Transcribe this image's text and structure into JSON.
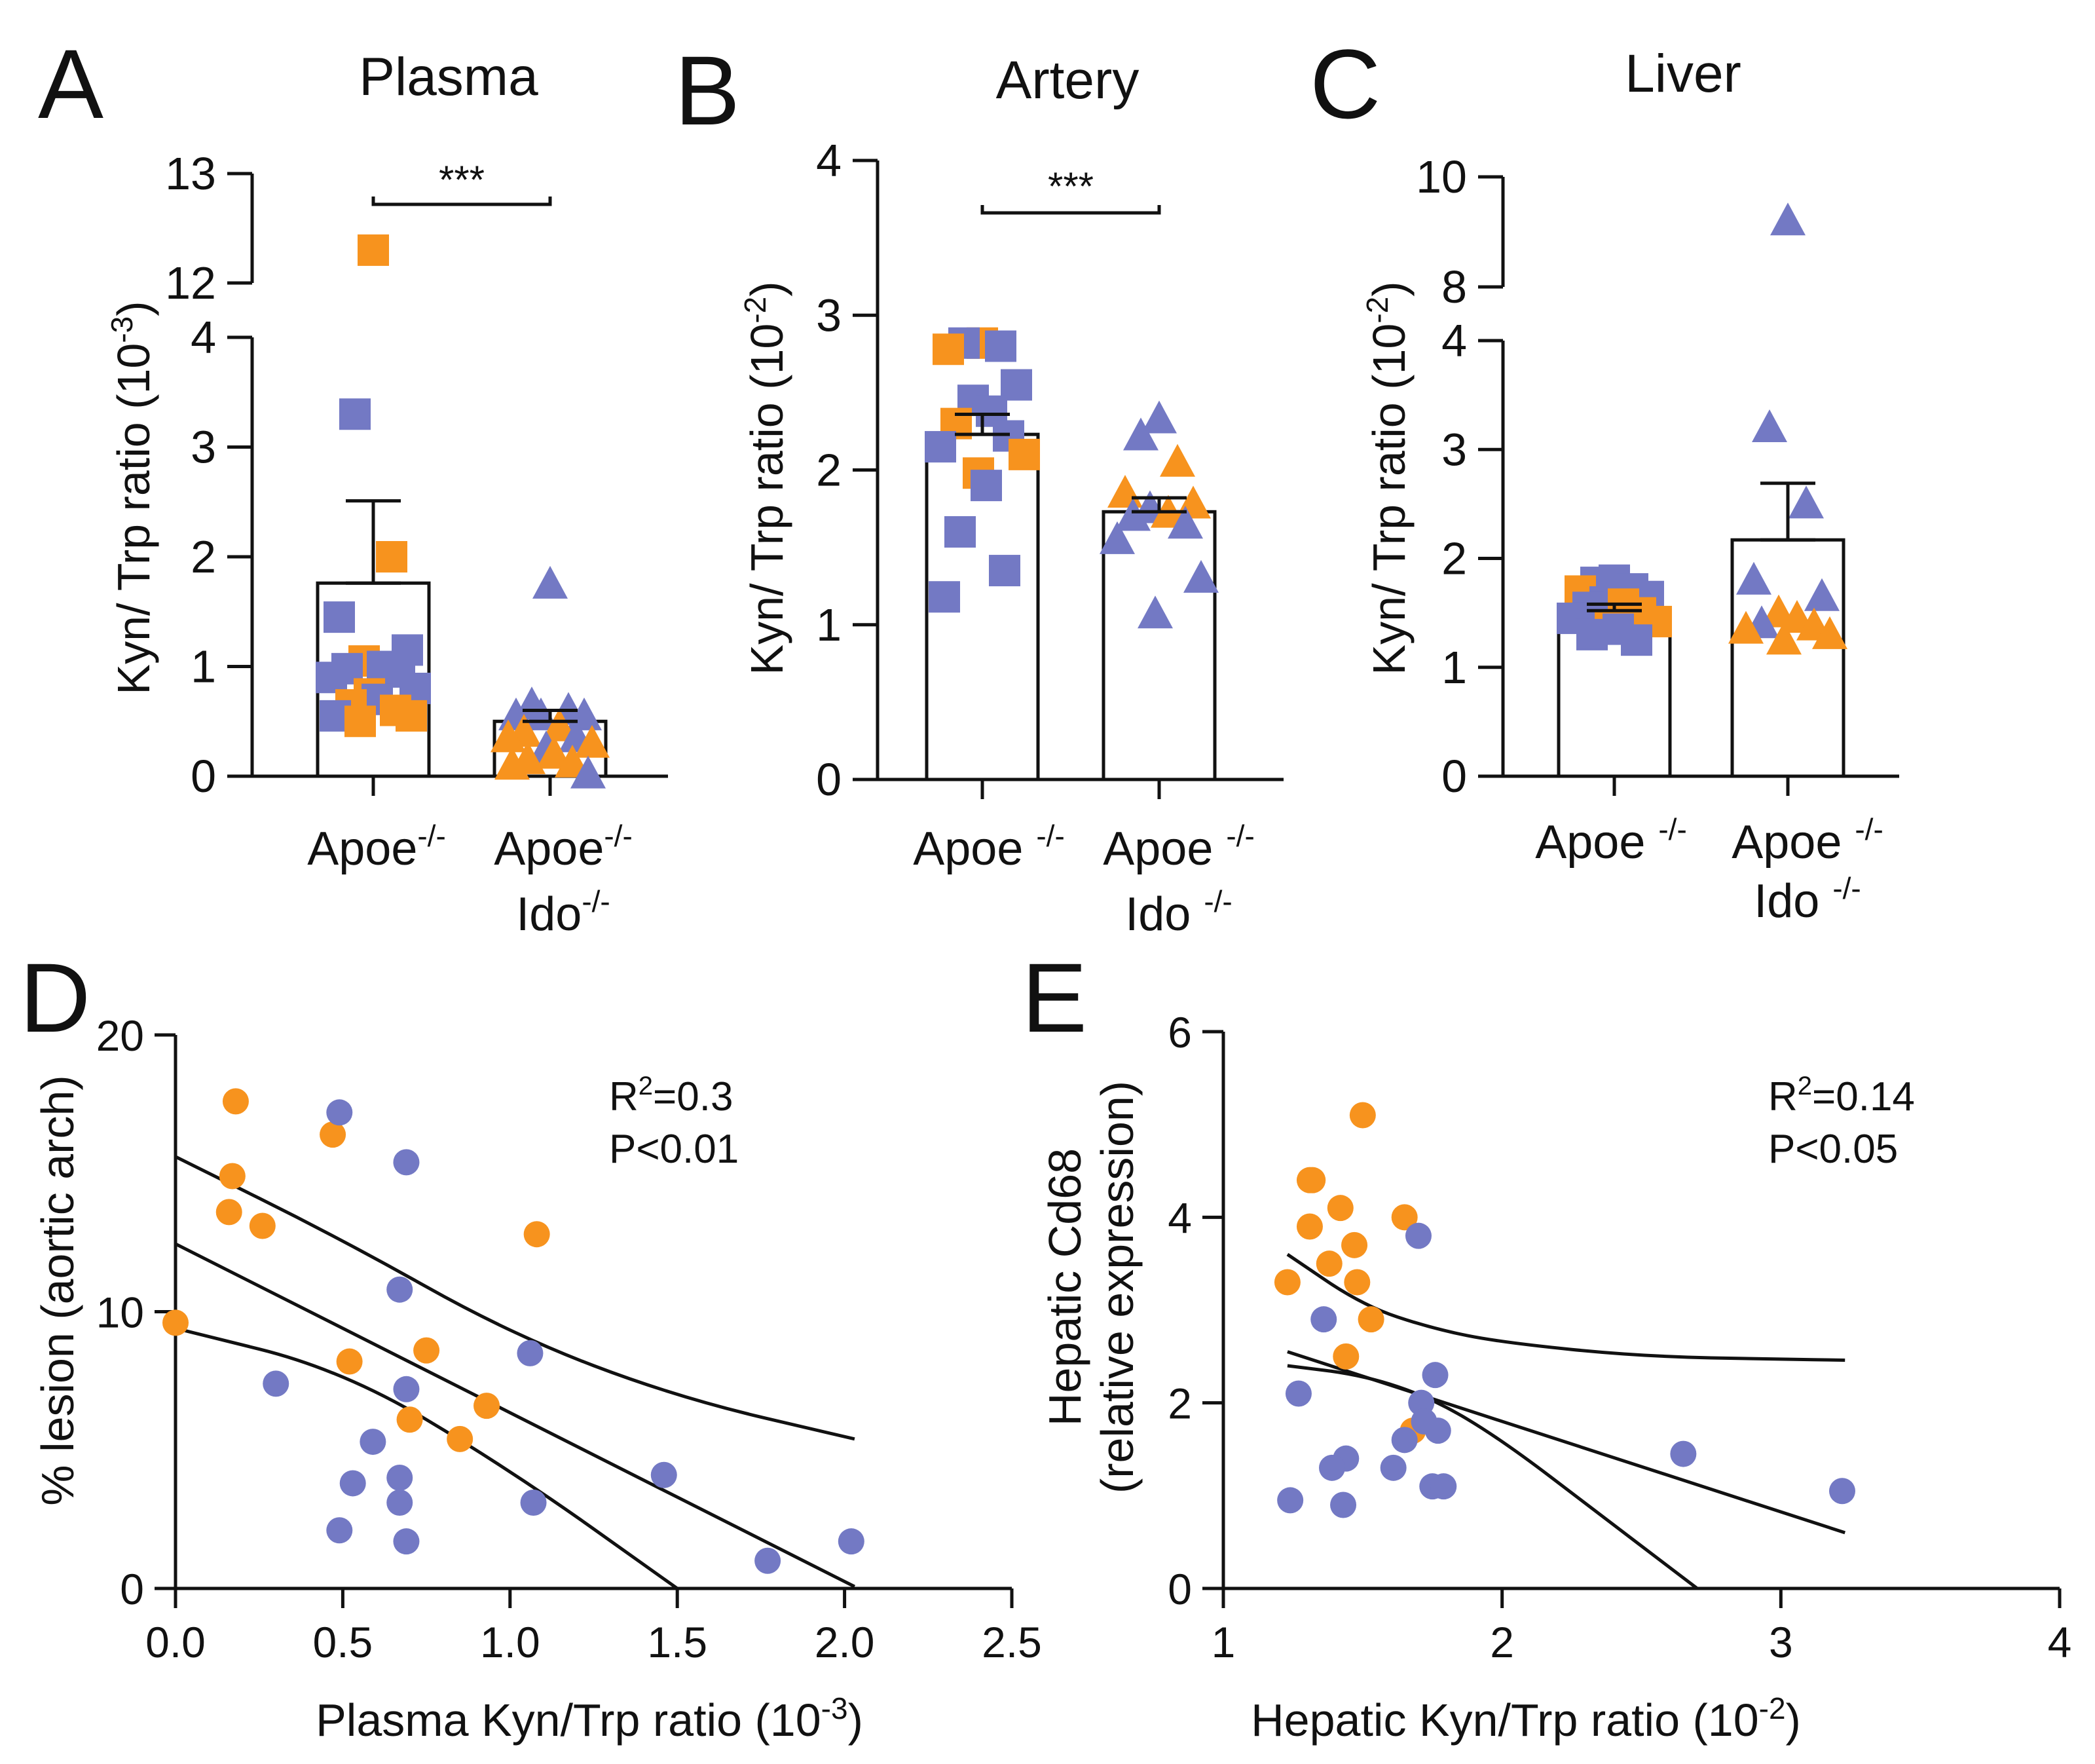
{
  "colors": {
    "orange": "#F7931E",
    "blue": "#7379C4",
    "ink": "#111111"
  },
  "chart_data": [
    {
      "id": "A",
      "panel_label": "A",
      "type": "bar",
      "title": "Plasma",
      "ylabel": "Kyn/ Trp ratio (10",
      "ylabel_exp": "-3",
      "ylabel_close": ")",
      "categories": [
        {
          "line1": "Apoe",
          "line1_sup": "-/-",
          "line2": "",
          "line2_sup": ""
        },
        {
          "line1": "Apoe",
          "line1_sup": "-/-",
          "line2": "Ido",
          "line2_sup": "-/-"
        }
      ],
      "axis_break": {
        "lower": [
          0,
          4
        ],
        "upper": [
          12,
          13
        ]
      },
      "yticks": [
        0,
        1,
        2,
        3,
        4,
        12,
        13
      ],
      "yticklabels": [
        "0",
        "1",
        "2",
        "3",
        "4",
        "12",
        "13"
      ],
      "means": [
        1.76,
        0.5
      ],
      "sem": [
        0.75,
        0.1
      ],
      "significance": {
        "label": "***",
        "pair": [
          0,
          1
        ],
        "y": 12.3
      },
      "marker": [
        "square",
        "triangle"
      ],
      "points": [
        [
          {
            "v": 12.3,
            "c": "orange"
          },
          {
            "v": 3.3,
            "c": "blue"
          },
          {
            "v": 2.0,
            "c": "orange"
          },
          {
            "v": 1.45,
            "c": "blue"
          },
          {
            "v": 1.15,
            "c": "blue"
          },
          {
            "v": 1.05,
            "c": "orange"
          },
          {
            "v": 1.0,
            "c": "blue"
          },
          {
            "v": 0.98,
            "c": "blue"
          },
          {
            "v": 0.95,
            "c": "blue"
          },
          {
            "v": 0.9,
            "c": "blue"
          },
          {
            "v": 0.8,
            "c": "blue"
          },
          {
            "v": 0.75,
            "c": "orange"
          },
          {
            "v": 0.7,
            "c": "blue"
          },
          {
            "v": 0.65,
            "c": "orange"
          },
          {
            "v": 0.6,
            "c": "orange"
          },
          {
            "v": 0.55,
            "c": "blue"
          },
          {
            "v": 0.55,
            "c": "orange"
          },
          {
            "v": 0.5,
            "c": "orange"
          }
        ],
        [
          {
            "v": 1.75,
            "c": "blue"
          },
          {
            "v": 0.65,
            "c": "blue"
          },
          {
            "v": 0.6,
            "c": "blue"
          },
          {
            "v": 0.55,
            "c": "blue"
          },
          {
            "v": 0.55,
            "c": "blue"
          },
          {
            "v": 0.55,
            "c": "blue"
          },
          {
            "v": 0.45,
            "c": "orange"
          },
          {
            "v": 0.4,
            "c": "orange"
          },
          {
            "v": 0.35,
            "c": "blue"
          },
          {
            "v": 0.35,
            "c": "orange"
          },
          {
            "v": 0.3,
            "c": "orange"
          },
          {
            "v": 0.25,
            "c": "blue"
          },
          {
            "v": 0.2,
            "c": "orange"
          },
          {
            "v": 0.15,
            "c": "orange"
          },
          {
            "v": 0.12,
            "c": "orange"
          },
          {
            "v": 0.1,
            "c": "orange"
          },
          {
            "v": 0.02,
            "c": "blue"
          }
        ]
      ]
    },
    {
      "id": "B",
      "panel_label": "B",
      "type": "bar",
      "title": "Artery",
      "ylabel": "Kyn/ Trp ratio (10",
      "ylabel_exp": "-2",
      "ylabel_close": ")",
      "categories": [
        {
          "line1": "Apoe ",
          "line1_sup": "-/-",
          "line2": "",
          "line2_sup": ""
        },
        {
          "line1": "Apoe ",
          "line1_sup": "-/-",
          "line2": "Ido ",
          "line2_sup": "-/-"
        }
      ],
      "ylim": [
        0,
        4
      ],
      "yticks": [
        0,
        1,
        2,
        3,
        4
      ],
      "yticklabels": [
        "0",
        "1",
        "2",
        "3",
        "4"
      ],
      "means": [
        2.23,
        1.73
      ],
      "sem": [
        0.13,
        0.09
      ],
      "significance": {
        "label": "***",
        "pair": [
          0,
          1
        ],
        "y": 3.7
      },
      "marker": [
        "square",
        "triangle"
      ],
      "points": [
        [
          {
            "v": 2.82,
            "c": "orange"
          },
          {
            "v": 2.82,
            "c": "blue"
          },
          {
            "v": 2.8,
            "c": "blue"
          },
          {
            "v": 2.78,
            "c": "orange"
          },
          {
            "v": 2.55,
            "c": "blue"
          },
          {
            "v": 2.45,
            "c": "blue"
          },
          {
            "v": 2.38,
            "c": "blue"
          },
          {
            "v": 2.3,
            "c": "orange"
          },
          {
            "v": 2.22,
            "c": "blue"
          },
          {
            "v": 2.15,
            "c": "blue"
          },
          {
            "v": 2.1,
            "c": "orange"
          },
          {
            "v": 1.98,
            "c": "orange"
          },
          {
            "v": 1.9,
            "c": "blue"
          },
          {
            "v": 1.6,
            "c": "blue"
          },
          {
            "v": 1.35,
            "c": "blue"
          },
          {
            "v": 1.18,
            "c": "blue"
          }
        ],
        [
          {
            "v": 2.33,
            "c": "blue"
          },
          {
            "v": 2.22,
            "c": "blue"
          },
          {
            "v": 2.05,
            "c": "orange"
          },
          {
            "v": 1.85,
            "c": "orange"
          },
          {
            "v": 1.78,
            "c": "orange"
          },
          {
            "v": 1.75,
            "c": "blue"
          },
          {
            "v": 1.72,
            "c": "orange"
          },
          {
            "v": 1.7,
            "c": "blue"
          },
          {
            "v": 1.65,
            "c": "blue"
          },
          {
            "v": 1.55,
            "c": "blue"
          },
          {
            "v": 1.3,
            "c": "blue"
          },
          {
            "v": 1.07,
            "c": "blue"
          }
        ]
      ]
    },
    {
      "id": "C",
      "panel_label": "C",
      "type": "bar",
      "title": "Liver",
      "ylabel": "Kyn/ Trp ratio (10",
      "ylabel_exp": "-2",
      "ylabel_close": ")",
      "categories": [
        {
          "line1": "Apoe ",
          "line1_sup": "-/-",
          "line2": "",
          "line2_sup": ""
        },
        {
          "line1": "Apoe ",
          "line1_sup": "-/-",
          "line2": "Ido ",
          "line2_sup": "-/-"
        }
      ],
      "axis_break": {
        "lower": [
          0,
          4
        ],
        "upper": [
          8,
          10
        ]
      },
      "yticks": [
        0,
        1,
        2,
        3,
        4,
        8,
        10
      ],
      "yticklabels": [
        "0",
        "1",
        "2",
        "3",
        "4",
        "8",
        "10"
      ],
      "means": [
        1.52,
        2.17
      ],
      "sem": [
        0.06,
        0.52
      ],
      "marker": [
        "square",
        "triangle"
      ],
      "points": [
        [
          {
            "v": 1.8,
            "c": "blue"
          },
          {
            "v": 1.78,
            "c": "blue"
          },
          {
            "v": 1.72,
            "c": "blue"
          },
          {
            "v": 1.7,
            "c": "orange"
          },
          {
            "v": 1.65,
            "c": "blue"
          },
          {
            "v": 1.6,
            "c": "blue"
          },
          {
            "v": 1.58,
            "c": "orange"
          },
          {
            "v": 1.55,
            "c": "blue"
          },
          {
            "v": 1.5,
            "c": "orange"
          },
          {
            "v": 1.45,
            "c": "blue"
          },
          {
            "v": 1.42,
            "c": "orange"
          },
          {
            "v": 1.38,
            "c": "orange"
          },
          {
            "v": 1.35,
            "c": "blue"
          },
          {
            "v": 1.3,
            "c": "blue"
          },
          {
            "v": 1.25,
            "c": "blue"
          }
        ],
        [
          {
            "v": 9.2,
            "c": "blue"
          },
          {
            "v": 3.2,
            "c": "blue"
          },
          {
            "v": 2.5,
            "c": "blue"
          },
          {
            "v": 1.8,
            "c": "blue"
          },
          {
            "v": 1.65,
            "c": "blue"
          },
          {
            "v": 1.5,
            "c": "orange"
          },
          {
            "v": 1.45,
            "c": "orange"
          },
          {
            "v": 1.4,
            "c": "blue"
          },
          {
            "v": 1.38,
            "c": "orange"
          },
          {
            "v": 1.35,
            "c": "orange"
          },
          {
            "v": 1.3,
            "c": "orange"
          },
          {
            "v": 1.25,
            "c": "orange"
          }
        ]
      ]
    },
    {
      "id": "D",
      "panel_label": "D",
      "type": "scatter",
      "xlabel": "Plasma Kyn/Trp ratio (10",
      "xlabel_exp": "-3",
      "xlabel_close": ")",
      "ylabel": "% lesion (aortic arch)",
      "xlim": [
        0,
        2.5
      ],
      "ylim": [
        0,
        20
      ],
      "xticks": [
        0,
        0.5,
        1.0,
        1.5,
        2.0,
        2.5
      ],
      "xticklabels": [
        "0.0",
        "0.5",
        "1.0",
        "1.5",
        "2.0",
        "2.5"
      ],
      "yticks": [
        0,
        10,
        20
      ],
      "yticklabels": [
        "0",
        "10",
        "20"
      ],
      "stats": {
        "r2_prefix": "R",
        "r2_sup": "2",
        "r2_value": "=0.3",
        "p": "P<0.01"
      },
      "fit": {
        "intercept": 12.45,
        "slope": -6.1,
        "x_range": [
          0,
          2.03
        ]
      },
      "ci_upper": [
        [
          0,
          15.6
        ],
        [
          0.5,
          12.6
        ],
        [
          1.0,
          9.2
        ],
        [
          1.5,
          6.9
        ],
        [
          2.03,
          5.4
        ]
      ],
      "ci_lower": [
        [
          0,
          9.4
        ],
        [
          0.5,
          7.9
        ],
        [
          1.0,
          4.3
        ],
        [
          1.5,
          0.0
        ]
      ],
      "points": [
        {
          "x": 0.0,
          "y": 9.6,
          "c": "orange"
        },
        {
          "x": 0.18,
          "y": 17.6,
          "c": "orange"
        },
        {
          "x": 0.17,
          "y": 14.9,
          "c": "orange"
        },
        {
          "x": 0.16,
          "y": 13.6,
          "c": "orange"
        },
        {
          "x": 0.26,
          "y": 13.1,
          "c": "orange"
        },
        {
          "x": 0.47,
          "y": 16.4,
          "c": "orange"
        },
        {
          "x": 0.52,
          "y": 8.2,
          "c": "orange"
        },
        {
          "x": 0.7,
          "y": 6.1,
          "c": "orange"
        },
        {
          "x": 0.75,
          "y": 8.6,
          "c": "orange"
        },
        {
          "x": 0.85,
          "y": 5.4,
          "c": "orange"
        },
        {
          "x": 0.93,
          "y": 6.6,
          "c": "orange"
        },
        {
          "x": 1.08,
          "y": 12.8,
          "c": "orange"
        },
        {
          "x": 0.49,
          "y": 17.2,
          "c": "blue"
        },
        {
          "x": 0.69,
          "y": 15.4,
          "c": "blue"
        },
        {
          "x": 0.67,
          "y": 10.8,
          "c": "blue"
        },
        {
          "x": 0.3,
          "y": 7.4,
          "c": "blue"
        },
        {
          "x": 0.69,
          "y": 7.2,
          "c": "blue"
        },
        {
          "x": 0.59,
          "y": 5.3,
          "c": "blue"
        },
        {
          "x": 0.53,
          "y": 3.8,
          "c": "blue"
        },
        {
          "x": 0.67,
          "y": 4.0,
          "c": "blue"
        },
        {
          "x": 0.67,
          "y": 3.1,
          "c": "blue"
        },
        {
          "x": 0.49,
          "y": 2.1,
          "c": "blue"
        },
        {
          "x": 0.69,
          "y": 1.7,
          "c": "blue"
        },
        {
          "x": 1.06,
          "y": 8.5,
          "c": "blue"
        },
        {
          "x": 1.07,
          "y": 3.1,
          "c": "blue"
        },
        {
          "x": 1.46,
          "y": 4.1,
          "c": "blue"
        },
        {
          "x": 1.77,
          "y": 1.0,
          "c": "blue"
        },
        {
          "x": 2.02,
          "y": 1.7,
          "c": "blue"
        }
      ]
    },
    {
      "id": "E",
      "panel_label": "E",
      "type": "scatter",
      "xlabel": "Hepatic Kyn/Trp ratio (10",
      "xlabel_exp": "-2",
      "xlabel_close": ")",
      "ylabel": "Hepatic Cd68",
      "ylabel2": "(relative expression)",
      "xlim": [
        1,
        4
      ],
      "ylim": [
        0,
        6
      ],
      "xticks": [
        1,
        2,
        3,
        4
      ],
      "xticklabels": [
        "1",
        "2",
        "3",
        "4"
      ],
      "yticks": [
        0,
        2,
        4,
        6
      ],
      "yticklabels": [
        "0",
        "2",
        "4",
        "6"
      ],
      "stats": {
        "r2_prefix": "R",
        "r2_sup": "2",
        "r2_value": "=0.14",
        "p": "P<0.05"
      },
      "fit": {
        "intercept": 3.75,
        "slope": -0.975,
        "x_range": [
          1.23,
          3.23
        ]
      },
      "ci_upper": [
        [
          1.23,
          3.6
        ],
        [
          1.5,
          3.05
        ],
        [
          1.75,
          2.8
        ],
        [
          2.0,
          2.65
        ],
        [
          2.5,
          2.5
        ],
        [
          3.0,
          2.47
        ],
        [
          3.23,
          2.46
        ]
      ],
      "ci_lower": [
        [
          1.23,
          2.4
        ],
        [
          1.5,
          2.3
        ],
        [
          1.75,
          2.05
        ],
        [
          2.0,
          1.6
        ],
        [
          2.35,
          0.8
        ],
        [
          2.7,
          0.0
        ]
      ],
      "points": [
        {
          "x": 1.5,
          "y": 5.1,
          "c": "orange"
        },
        {
          "x": 1.31,
          "y": 4.4,
          "c": "orange"
        },
        {
          "x": 1.32,
          "y": 4.4,
          "c": "orange"
        },
        {
          "x": 1.42,
          "y": 4.1,
          "c": "orange"
        },
        {
          "x": 1.65,
          "y": 4.0,
          "c": "orange"
        },
        {
          "x": 1.31,
          "y": 3.9,
          "c": "orange"
        },
        {
          "x": 1.47,
          "y": 3.7,
          "c": "orange"
        },
        {
          "x": 1.38,
          "y": 3.5,
          "c": "orange"
        },
        {
          "x": 1.23,
          "y": 3.3,
          "c": "orange"
        },
        {
          "x": 1.48,
          "y": 3.3,
          "c": "orange"
        },
        {
          "x": 1.53,
          "y": 2.9,
          "c": "orange"
        },
        {
          "x": 1.44,
          "y": 2.5,
          "c": "orange"
        },
        {
          "x": 1.68,
          "y": 1.7,
          "c": "orange"
        },
        {
          "x": 1.7,
          "y": 3.8,
          "c": "blue"
        },
        {
          "x": 1.36,
          "y": 2.9,
          "c": "blue"
        },
        {
          "x": 1.27,
          "y": 2.1,
          "c": "blue"
        },
        {
          "x": 1.76,
          "y": 2.3,
          "c": "blue"
        },
        {
          "x": 1.71,
          "y": 2.0,
          "c": "blue"
        },
        {
          "x": 1.72,
          "y": 1.8,
          "c": "blue"
        },
        {
          "x": 1.65,
          "y": 1.6,
          "c": "blue"
        },
        {
          "x": 1.77,
          "y": 1.7,
          "c": "blue"
        },
        {
          "x": 1.44,
          "y": 1.4,
          "c": "blue"
        },
        {
          "x": 1.39,
          "y": 1.3,
          "c": "blue"
        },
        {
          "x": 1.61,
          "y": 1.3,
          "c": "blue"
        },
        {
          "x": 1.75,
          "y": 1.1,
          "c": "blue"
        },
        {
          "x": 1.79,
          "y": 1.1,
          "c": "blue"
        },
        {
          "x": 1.24,
          "y": 0.95,
          "c": "blue"
        },
        {
          "x": 1.43,
          "y": 0.9,
          "c": "blue"
        },
        {
          "x": 2.65,
          "y": 1.45,
          "c": "blue"
        },
        {
          "x": 3.22,
          "y": 1.05,
          "c": "blue"
        }
      ]
    }
  ]
}
